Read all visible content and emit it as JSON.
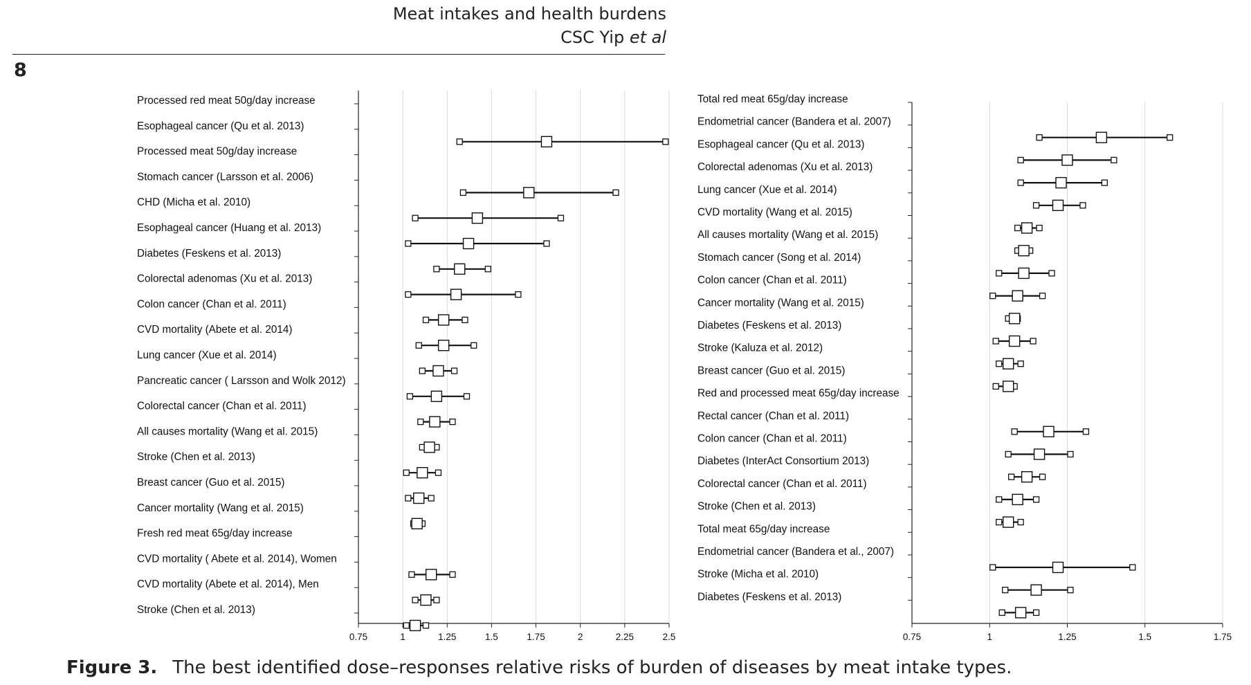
{
  "header": {
    "title": "Meat intakes and health burdens",
    "authors_main": "CSC Yip ",
    "authors_italic": "et al"
  },
  "page_number": "8",
  "caption": {
    "label": "Figure 3.",
    "text": "The best identified dose–responses relative risks of burden of diseases by meat intake types."
  },
  "chart_data": [
    {
      "type": "forest",
      "xlim": [
        0.75,
        2.5
      ],
      "xticks": [
        "0.75",
        "1",
        "1.25",
        "1.5",
        "1.75",
        "2",
        "2.25",
        "2.5"
      ],
      "grid": true,
      "rows": [
        {
          "label": "Processed red meat 50g/day increase",
          "header": true
        },
        {
          "label": "Esophageal cancer  (Qu et al. 2013)",
          "lo": 1.32,
          "est": 1.81,
          "hi": 2.48
        },
        {
          "label": "Processed meat 50g/day increase",
          "header": true
        },
        {
          "label": "Stomach cancer  (Larsson et al. 2006)",
          "lo": 1.34,
          "est": 1.71,
          "hi": 2.2
        },
        {
          "label": "CHD  (Micha et al. 2010)",
          "lo": 1.07,
          "est": 1.42,
          "hi": 1.89
        },
        {
          "label": "Esophageal cancer (Huang et al. 2013)",
          "lo": 1.03,
          "est": 1.37,
          "hi": 1.81
        },
        {
          "label": "Diabetes (Feskens et al. 2013)",
          "lo": 1.19,
          "est": 1.32,
          "hi": 1.48
        },
        {
          "label": "Colorectal adenomas (Xu et al. 2013)",
          "lo": 1.03,
          "est": 1.3,
          "hi": 1.65
        },
        {
          "label": "Colon cancer (Chan et al. 2011)",
          "lo": 1.13,
          "est": 1.23,
          "hi": 1.35
        },
        {
          "label": "CVD mortality (Abete et al. 2014)",
          "lo": 1.09,
          "est": 1.23,
          "hi": 1.4
        },
        {
          "label": "Lung cancer (Xue et al. 2014)",
          "lo": 1.11,
          "est": 1.2,
          "hi": 1.29
        },
        {
          "label": "Pancreatic cancer ( Larsson and Wolk 2012)",
          "lo": 1.04,
          "est": 1.19,
          "hi": 1.36
        },
        {
          "label": "Colorectal cancer (Chan et al. 2011)",
          "lo": 1.1,
          "est": 1.18,
          "hi": 1.28
        },
        {
          "label": "All causes mortality (Wang et al. 2015)",
          "lo": 1.11,
          "est": 1.15,
          "hi": 1.19
        },
        {
          "label": "Stroke (Chen et al. 2013)",
          "lo": 1.02,
          "est": 1.11,
          "hi": 1.2
        },
        {
          "label": "Breast cancer (Guo et al. 2015)",
          "lo": 1.03,
          "est": 1.09,
          "hi": 1.16
        },
        {
          "label": "Cancer mortality (Wang et al. 2015)",
          "lo": 1.06,
          "est": 1.08,
          "hi": 1.11
        },
        {
          "label": "Fresh red meat 65g/day increase",
          "header": true
        },
        {
          "label": "CVD mortality ( Abete et al. 2014), Women",
          "lo": 1.05,
          "est": 1.16,
          "hi": 1.28
        },
        {
          "label": "CVD mortality (Abete et al. 2014), Men",
          "lo": 1.07,
          "est": 1.13,
          "hi": 1.19
        },
        {
          "label": "Stroke (Chen et al. 2013)",
          "lo": 1.02,
          "est": 1.07,
          "hi": 1.13
        }
      ]
    },
    {
      "type": "forest",
      "xlim": [
        0.75,
        1.75
      ],
      "xticks": [
        "0.75",
        "1",
        "1.25",
        "1.5",
        "1.75"
      ],
      "grid": true,
      "rows": [
        {
          "label": "Total red meat 65g/day increase",
          "header": true
        },
        {
          "label": "Endometrial cancer (Bandera et al. 2007)",
          "lo": 1.16,
          "est": 1.36,
          "hi": 1.58
        },
        {
          "label": "Esophageal cancer (Qu et al. 2013)",
          "lo": 1.1,
          "est": 1.25,
          "hi": 1.4
        },
        {
          "label": "Colorectal adenomas (Xu et al. 2013)",
          "lo": 1.1,
          "est": 1.23,
          "hi": 1.37
        },
        {
          "label": "Lung cancer (Xue et al. 2014)",
          "lo": 1.15,
          "est": 1.22,
          "hi": 1.3
        },
        {
          "label": "CVD mortality (Wang et al. 2015)",
          "lo": 1.09,
          "est": 1.12,
          "hi": 1.16
        },
        {
          "label": "All causes mortality (Wang et al. 2015)",
          "lo": 1.09,
          "est": 1.11,
          "hi": 1.13
        },
        {
          "label": "Stomach cancer (Song et al. 2014)",
          "lo": 1.03,
          "est": 1.11,
          "hi": 1.2
        },
        {
          "label": "Colon cancer (Chan et al. 2011)",
          "lo": 1.01,
          "est": 1.09,
          "hi": 1.17
        },
        {
          "label": "Cancer mortality (Wang et al. 2015)",
          "lo": 1.06,
          "est": 1.08,
          "hi": 1.09
        },
        {
          "label": "Diabetes (Feskens et al. 2013)",
          "lo": 1.02,
          "est": 1.08,
          "hi": 1.14
        },
        {
          "label": "Stroke (Kaluza et al. 2012)",
          "lo": 1.03,
          "est": 1.06,
          "hi": 1.1
        },
        {
          "label": "Breast cancer (Guo et al. 2015)",
          "lo": 1.02,
          "est": 1.06,
          "hi": 1.08
        },
        {
          "label": "Red and processed meat 65g/day increase",
          "header": true
        },
        {
          "label": "Rectal cancer (Chan et al. 2011)",
          "lo": 1.08,
          "est": 1.19,
          "hi": 1.31
        },
        {
          "label": "Colon cancer (Chan et al. 2011)",
          "lo": 1.06,
          "est": 1.16,
          "hi": 1.26
        },
        {
          "label": "Diabetes (InterAct Consortium 2013)",
          "lo": 1.07,
          "est": 1.12,
          "hi": 1.17
        },
        {
          "label": "Colorectal cancer (Chan et al. 2011)",
          "lo": 1.03,
          "est": 1.09,
          "hi": 1.15
        },
        {
          "label": "Stroke (Chen et al. 2013)",
          "lo": 1.03,
          "est": 1.06,
          "hi": 1.1
        },
        {
          "label": "Total meat 65g/day increase",
          "header": true
        },
        {
          "label": "Endometrial cancer (Bandera et al., 2007)",
          "lo": 1.01,
          "est": 1.22,
          "hi": 1.46
        },
        {
          "label": "Stroke (Micha et al. 2010)",
          "lo": 1.05,
          "est": 1.15,
          "hi": 1.26
        },
        {
          "label": "Diabetes (Feskens et al. 2013)",
          "lo": 1.04,
          "est": 1.1,
          "hi": 1.15
        }
      ]
    }
  ]
}
